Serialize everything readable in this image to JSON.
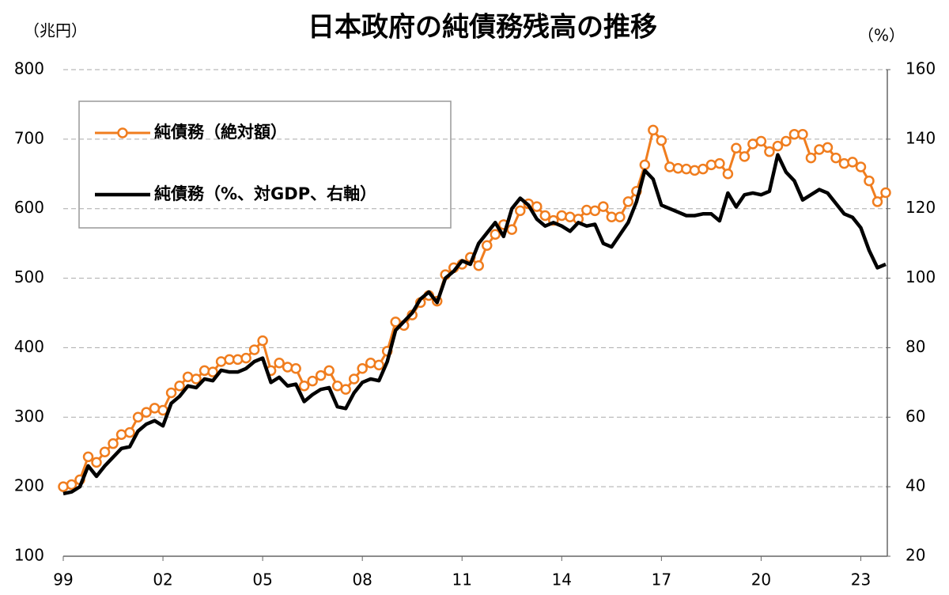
{
  "chart_data": {
    "type": "line",
    "title": "日本政府の純債務残高の推移",
    "ylabel": "（兆円）",
    "y2label": "（%）",
    "x": [
      1999,
      1999.25,
      1999.5,
      1999.75,
      2000,
      2000.25,
      2000.5,
      2000.75,
      2001,
      2001.25,
      2001.5,
      2001.75,
      2002,
      2002.25,
      2002.5,
      2002.75,
      2003,
      2003.25,
      2003.5,
      2003.75,
      2004,
      2004.25,
      2004.5,
      2004.75,
      2005,
      2005.25,
      2005.5,
      2005.75,
      2006,
      2006.25,
      2006.5,
      2006.75,
      2007,
      2007.25,
      2007.5,
      2007.75,
      2008,
      2008.25,
      2008.5,
      2008.75,
      2009,
      2009.25,
      2009.5,
      2009.75,
      2010,
      2010.25,
      2010.5,
      2010.75,
      2011,
      2011.25,
      2011.5,
      2011.75,
      2012,
      2012.25,
      2012.5,
      2012.75,
      2013,
      2013.25,
      2013.5,
      2013.75,
      2014,
      2014.25,
      2014.5,
      2014.75,
      2015,
      2015.25,
      2015.5,
      2015.75,
      2016,
      2016.25,
      2016.5,
      2016.75,
      2017,
      2017.25,
      2017.5,
      2017.75,
      2018,
      2018.25,
      2018.5,
      2018.75,
      2019,
      2019.25,
      2019.5,
      2019.75,
      2020,
      2020.25,
      2020.5,
      2020.75,
      2021,
      2021.25,
      2021.5,
      2021.75,
      2022,
      2022.25,
      2022.5,
      2022.75,
      2023,
      2023.25,
      2023.5,
      2023.75
    ],
    "series": [
      {
        "name": "純債務（絶対額）",
        "color": "#f07d1e",
        "markers": true,
        "values": [
          200,
          203,
          210,
          243,
          235,
          250,
          262,
          275,
          278,
          300,
          307,
          313,
          310,
          335,
          345,
          358,
          355,
          367,
          365,
          380,
          383,
          383,
          385,
          397,
          410,
          367,
          378,
          372,
          370,
          345,
          352,
          360,
          367,
          345,
          340,
          355,
          370,
          378,
          375,
          395,
          437,
          432,
          447,
          465,
          475,
          467,
          505,
          515,
          520,
          530,
          518,
          547,
          563,
          577,
          570,
          597,
          607,
          603,
          590,
          583,
          590,
          588,
          585,
          598,
          597,
          603,
          588,
          588,
          610,
          625,
          663,
          713,
          698,
          660,
          658,
          657,
          655,
          657,
          663,
          665,
          650,
          687,
          675,
          693,
          697,
          682,
          690,
          697,
          707,
          707,
          673,
          685,
          688,
          673,
          665,
          667,
          660,
          640,
          610,
          623
        ]
      },
      {
        "name": "純債務（%、対GDP、右軸）",
        "color": "#000000",
        "axis": "y2",
        "markers": false,
        "values": [
          38,
          38.5,
          40,
          46,
          43,
          46,
          48.5,
          51,
          51.5,
          56,
          58,
          59,
          57.5,
          64,
          66,
          69,
          68.5,
          71,
          70.5,
          73.5,
          73,
          73,
          74,
          76,
          77,
          70,
          71.5,
          69,
          69.5,
          64.5,
          66.5,
          68,
          68.5,
          63,
          62.5,
          67,
          70,
          71,
          70.5,
          76,
          85,
          87.5,
          90,
          94,
          96,
          93,
          100,
          102,
          105,
          104,
          110,
          113,
          116,
          112,
          120,
          123,
          121,
          117,
          115,
          116,
          115,
          113.5,
          116,
          115,
          115.5,
          110,
          109,
          112.5,
          116,
          122,
          131,
          128.5,
          121,
          120,
          119,
          118,
          118,
          118.5,
          118.5,
          116.5,
          124.5,
          120.5,
          124,
          124.5,
          124,
          125,
          135.5,
          130.5,
          128,
          122.5,
          124,
          125.5,
          124.5,
          121.5,
          118.5,
          117.5,
          114.5,
          108,
          103,
          104
        ]
      }
    ],
    "xlim": [
      1999,
      2023.75
    ],
    "xticks": [
      {
        "value": 1999,
        "label": "99"
      },
      {
        "value": 2002,
        "label": "02"
      },
      {
        "value": 2005,
        "label": "05"
      },
      {
        "value": 2008,
        "label": "08"
      },
      {
        "value": 2011,
        "label": "11"
      },
      {
        "value": 2014,
        "label": "14"
      },
      {
        "value": 2017,
        "label": "17"
      },
      {
        "value": 2020,
        "label": "20"
      },
      {
        "value": 2023,
        "label": "23"
      }
    ],
    "ylim": [
      100,
      800
    ],
    "yticks": [
      100,
      200,
      300,
      400,
      500,
      600,
      700,
      800
    ],
    "y2lim": [
      20,
      160
    ],
    "y2ticks": [
      20,
      40,
      60,
      80,
      100,
      120,
      140,
      160
    ],
    "grid": true,
    "legend": "upper left"
  }
}
